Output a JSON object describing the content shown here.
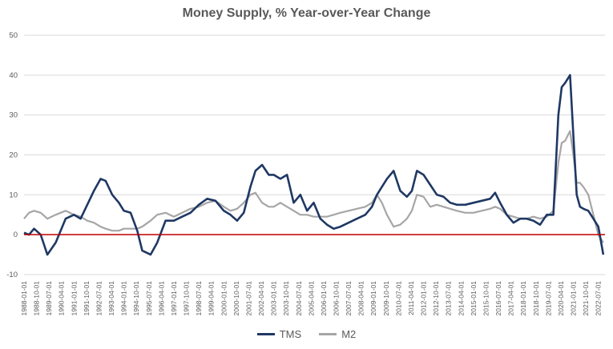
{
  "chart_data": {
    "type": "line",
    "title": "Money Supply, % Year-over-Year Change",
    "xlabel": "",
    "ylabel": "",
    "ylim": [
      -10,
      50
    ],
    "yticks": [
      -10,
      0,
      10,
      20,
      30,
      40,
      50
    ],
    "grid": true,
    "legend_position": "bottom",
    "zero_line_color": "#c00000",
    "x_ticks": [
      "1988-01-01",
      "1988-10-01",
      "1989-07-01",
      "1990-04-01",
      "1991-01-01",
      "1991-10-01",
      "1992-07-01",
      "1993-04-01",
      "1994-01-01",
      "1994-10-01",
      "1995-07-01",
      "1996-04-01",
      "1997-01-01",
      "1997-10-01",
      "1998-07-01",
      "1999-04-01",
      "2000-01-01",
      "2000-10-01",
      "2001-07-01",
      "2002-04-01",
      "2003-01-01",
      "2003-10-01",
      "2004-07-01",
      "2005-04-01",
      "2006-01-01",
      "2006-10-01",
      "2007-07-01",
      "2008-04-01",
      "2009-01-01",
      "2009-10-01",
      "2010-07-01",
      "2011-04-01",
      "2012-01-01",
      "2012-10-01",
      "2013-07-01",
      "2014-04-01",
      "2015-01-01",
      "2015-10-01",
      "2016-07-01",
      "2017-04-01",
      "2018-01-01",
      "2018-10-01",
      "2019-07-01",
      "2020-04-01",
      "2021-01-01",
      "2021-10-01",
      "2022-07-01"
    ],
    "series": [
      {
        "name": "TMS",
        "color": "#1f3864",
        "x": [
          1988.0,
          1988.3,
          1988.6,
          1989.0,
          1989.4,
          1989.9,
          1990.5,
          1991.0,
          1991.4,
          1991.8,
          1992.2,
          1992.6,
          1992.9,
          1993.3,
          1993.7,
          1994.0,
          1994.4,
          1994.8,
          1995.1,
          1995.6,
          1996.0,
          1996.5,
          1997.0,
          1997.5,
          1998.0,
          1998.5,
          1999.0,
          1999.5,
          2000.0,
          2000.4,
          2000.8,
          2001.2,
          2001.6,
          2001.9,
          2002.3,
          2002.7,
          2003.0,
          2003.4,
          2003.8,
          2004.2,
          2004.6,
          2005.0,
          2005.4,
          2005.8,
          2006.2,
          2006.6,
          2007.0,
          2007.5,
          2008.0,
          2008.5,
          2008.9,
          2009.2,
          2009.5,
          2009.8,
          2010.2,
          2010.6,
          2011.0,
          2011.3,
          2011.6,
          2012.0,
          2012.4,
          2012.8,
          2013.2,
          2013.6,
          2014.0,
          2014.5,
          2015.0,
          2015.5,
          2016.0,
          2016.3,
          2016.6,
          2017.0,
          2017.4,
          2017.8,
          2018.2,
          2018.6,
          2019.0,
          2019.4,
          2019.8,
          2020.1,
          2020.3,
          2020.5,
          2020.8,
          2021.0,
          2021.2,
          2021.4,
          2021.6,
          2021.9,
          2022.2,
          2022.5,
          2022.8
        ],
        "values": [
          0.5,
          0,
          1.5,
          0,
          -5,
          -2,
          4,
          5,
          4,
          7.5,
          11,
          14,
          13.5,
          10,
          8,
          6,
          5.5,
          1,
          -4,
          -5,
          -2,
          3.5,
          3.5,
          4.5,
          5.5,
          7.5,
          9,
          8.5,
          6,
          5,
          3.5,
          5.5,
          12,
          16,
          17.5,
          15,
          15,
          14,
          15,
          8,
          10,
          6,
          8,
          4,
          2.5,
          1.5,
          2,
          3,
          4,
          5,
          7,
          10,
          12,
          14,
          16,
          11,
          9.5,
          11,
          16,
          15,
          12.5,
          10,
          9.5,
          8,
          7.5,
          7.5,
          8,
          8.5,
          9,
          10.5,
          8,
          5,
          3,
          4,
          4,
          3.5,
          2.5,
          5,
          5,
          30,
          37,
          38,
          40,
          25,
          10,
          7,
          6.5,
          6,
          4,
          2,
          -5
        ]
      },
      {
        "name": "M2",
        "color": "#a6a6a6",
        "x": [
          1988.0,
          1988.3,
          1988.6,
          1989.0,
          1989.4,
          1989.9,
          1990.5,
          1991.0,
          1991.4,
          1991.8,
          1992.2,
          1992.6,
          1992.9,
          1993.3,
          1993.7,
          1994.0,
          1994.4,
          1994.8,
          1995.1,
          1995.6,
          1996.0,
          1996.5,
          1997.0,
          1997.5,
          1998.0,
          1998.5,
          1999.0,
          1999.5,
          2000.0,
          2000.4,
          2000.8,
          2001.2,
          2001.6,
          2001.9,
          2002.3,
          2002.7,
          2003.0,
          2003.4,
          2003.8,
          2004.2,
          2004.6,
          2005.0,
          2005.4,
          2005.8,
          2006.2,
          2006.6,
          2007.0,
          2007.5,
          2008.0,
          2008.5,
          2008.9,
          2009.2,
          2009.5,
          2009.8,
          2010.2,
          2010.6,
          2011.0,
          2011.3,
          2011.6,
          2012.0,
          2012.4,
          2012.8,
          2013.2,
          2013.6,
          2014.0,
          2014.5,
          2015.0,
          2015.5,
          2016.0,
          2016.3,
          2016.6,
          2017.0,
          2017.4,
          2017.8,
          2018.2,
          2018.6,
          2019.0,
          2019.4,
          2019.8,
          2020.1,
          2020.3,
          2020.5,
          2020.8,
          2021.0,
          2021.2,
          2021.4,
          2021.6,
          2021.9,
          2022.2,
          2022.5,
          2022.8
        ],
        "values": [
          4,
          5.5,
          6,
          5.5,
          4,
          5,
          6,
          5,
          4.5,
          3.5,
          3,
          2,
          1.5,
          1,
          1,
          1.5,
          1.5,
          1.5,
          2,
          3.5,
          5,
          5.5,
          4.5,
          5.5,
          6.5,
          7,
          8,
          8.5,
          7,
          6,
          6.5,
          8,
          10,
          10.5,
          8,
          7,
          7,
          8,
          7,
          6,
          5,
          5,
          4.5,
          4.5,
          4.5,
          5,
          5.5,
          6,
          6.5,
          7,
          8,
          10,
          8,
          5,
          2,
          2.5,
          4,
          6,
          10,
          9.5,
          7,
          7.5,
          7,
          6.5,
          6,
          5.5,
          5.5,
          6,
          6.5,
          7,
          6.5,
          5,
          4.5,
          4,
          4,
          4.5,
          4,
          4.5,
          6,
          18,
          23,
          23.5,
          26,
          20,
          13,
          13,
          12,
          10,
          5,
          0,
          -2
        ]
      }
    ]
  }
}
